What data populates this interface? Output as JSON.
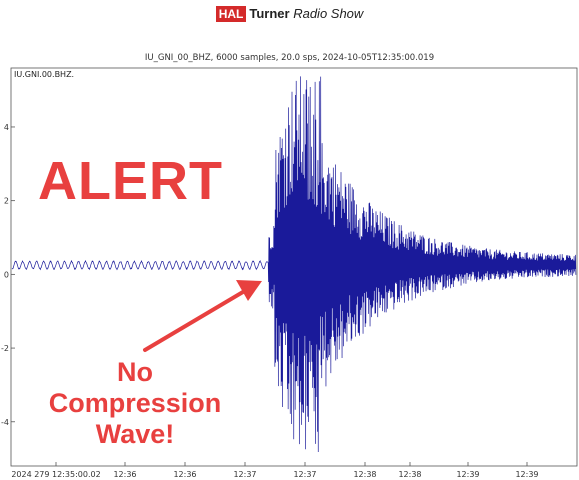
{
  "header": {
    "brand_hal": "HAL",
    "brand_turner": "Turner",
    "brand_show": "Radio Show"
  },
  "chart_data": {
    "type": "line",
    "title": "IU_GNI_00_BHZ, 6000 samples, 20.0 sps, 2024-10-05T12:35:00.019",
    "channel_label": "IU.GNI.00.BHZ.",
    "ylim": [
      -5.2,
      5.6
    ],
    "yticks": [
      4,
      2,
      0,
      -2,
      -4
    ],
    "xtick_labels": [
      "2024 279 12:35:00.02",
      "12:36",
      "12:36",
      "12:37",
      "12:37",
      "12:38",
      "12:38",
      "12:39",
      "12:39"
    ],
    "color": "#1a1a9a",
    "grid": false,
    "trace": {
      "baseline": 0.25,
      "pre_event_amplitude": 0.12,
      "onset_fraction": 0.455,
      "peak_amplitude_up": 5.4,
      "peak_amplitude_down": -4.9,
      "tail_amplitude": 0.25
    }
  },
  "annotations": {
    "alert": "ALERT",
    "note_lines": [
      "No",
      "Compression",
      "Wave!"
    ],
    "color": "#e8403f"
  }
}
